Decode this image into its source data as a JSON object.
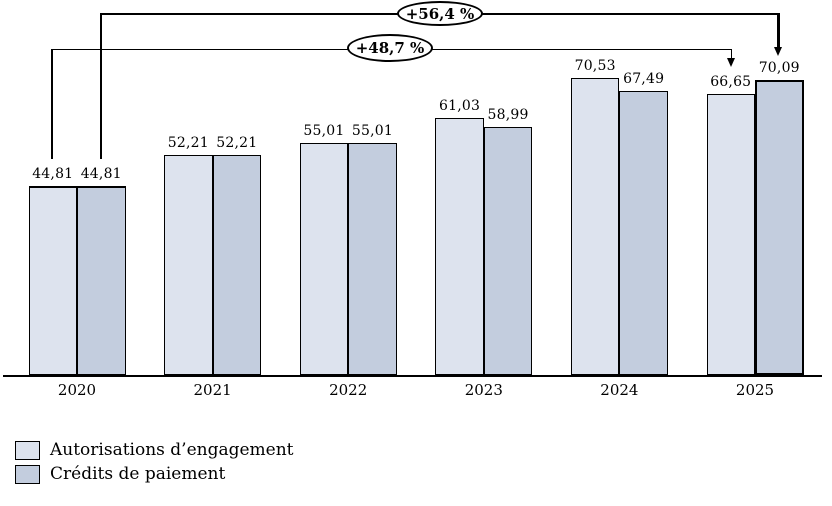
{
  "chart_data": {
    "type": "bar",
    "title": "",
    "xlabel": "",
    "ylabel": "",
    "ylim": [
      0,
      89
    ],
    "grid": false,
    "legend_position": "bottom-left",
    "categories": [
      "2020",
      "2021",
      "2022",
      "2023",
      "2024",
      "2025"
    ],
    "series": [
      {
        "name": "Autorisations d’engagement",
        "color": "#dde3ee",
        "values": [
          44.81,
          52.21,
          55.01,
          61.03,
          70.53,
          66.65
        ],
        "labels": [
          "44,81",
          "52,21",
          "55,01",
          "61,03",
          "70,53",
          "66,65"
        ]
      },
      {
        "name": "Crédits de paiement",
        "color": "#c3cdde",
        "values": [
          44.81,
          52.21,
          55.01,
          58.99,
          67.49,
          70.09
        ],
        "labels": [
          "44,81",
          "52,21",
          "55,01",
          "58,99",
          "67,49",
          "70,09"
        ]
      }
    ],
    "annotations": [
      {
        "label": "+56,4 %",
        "from": {
          "year": "2020",
          "series": "Crédits de paiement",
          "value": 44.81
        },
        "to": {
          "year": "2025",
          "series": "Crédits de paiement",
          "value": 70.09
        }
      },
      {
        "label": "+48,7 %",
        "from": {
          "year": "2020",
          "series": "Autorisations d’engagement",
          "value": 44.81
        },
        "to": {
          "year": "2025",
          "series": "Autorisations d’engagement",
          "value": 66.65
        }
      }
    ],
    "emphasis": {
      "bold_top_group_index": 0,
      "bold_outline_bar": {
        "group_index": 5,
        "series_index": 1
      }
    }
  }
}
